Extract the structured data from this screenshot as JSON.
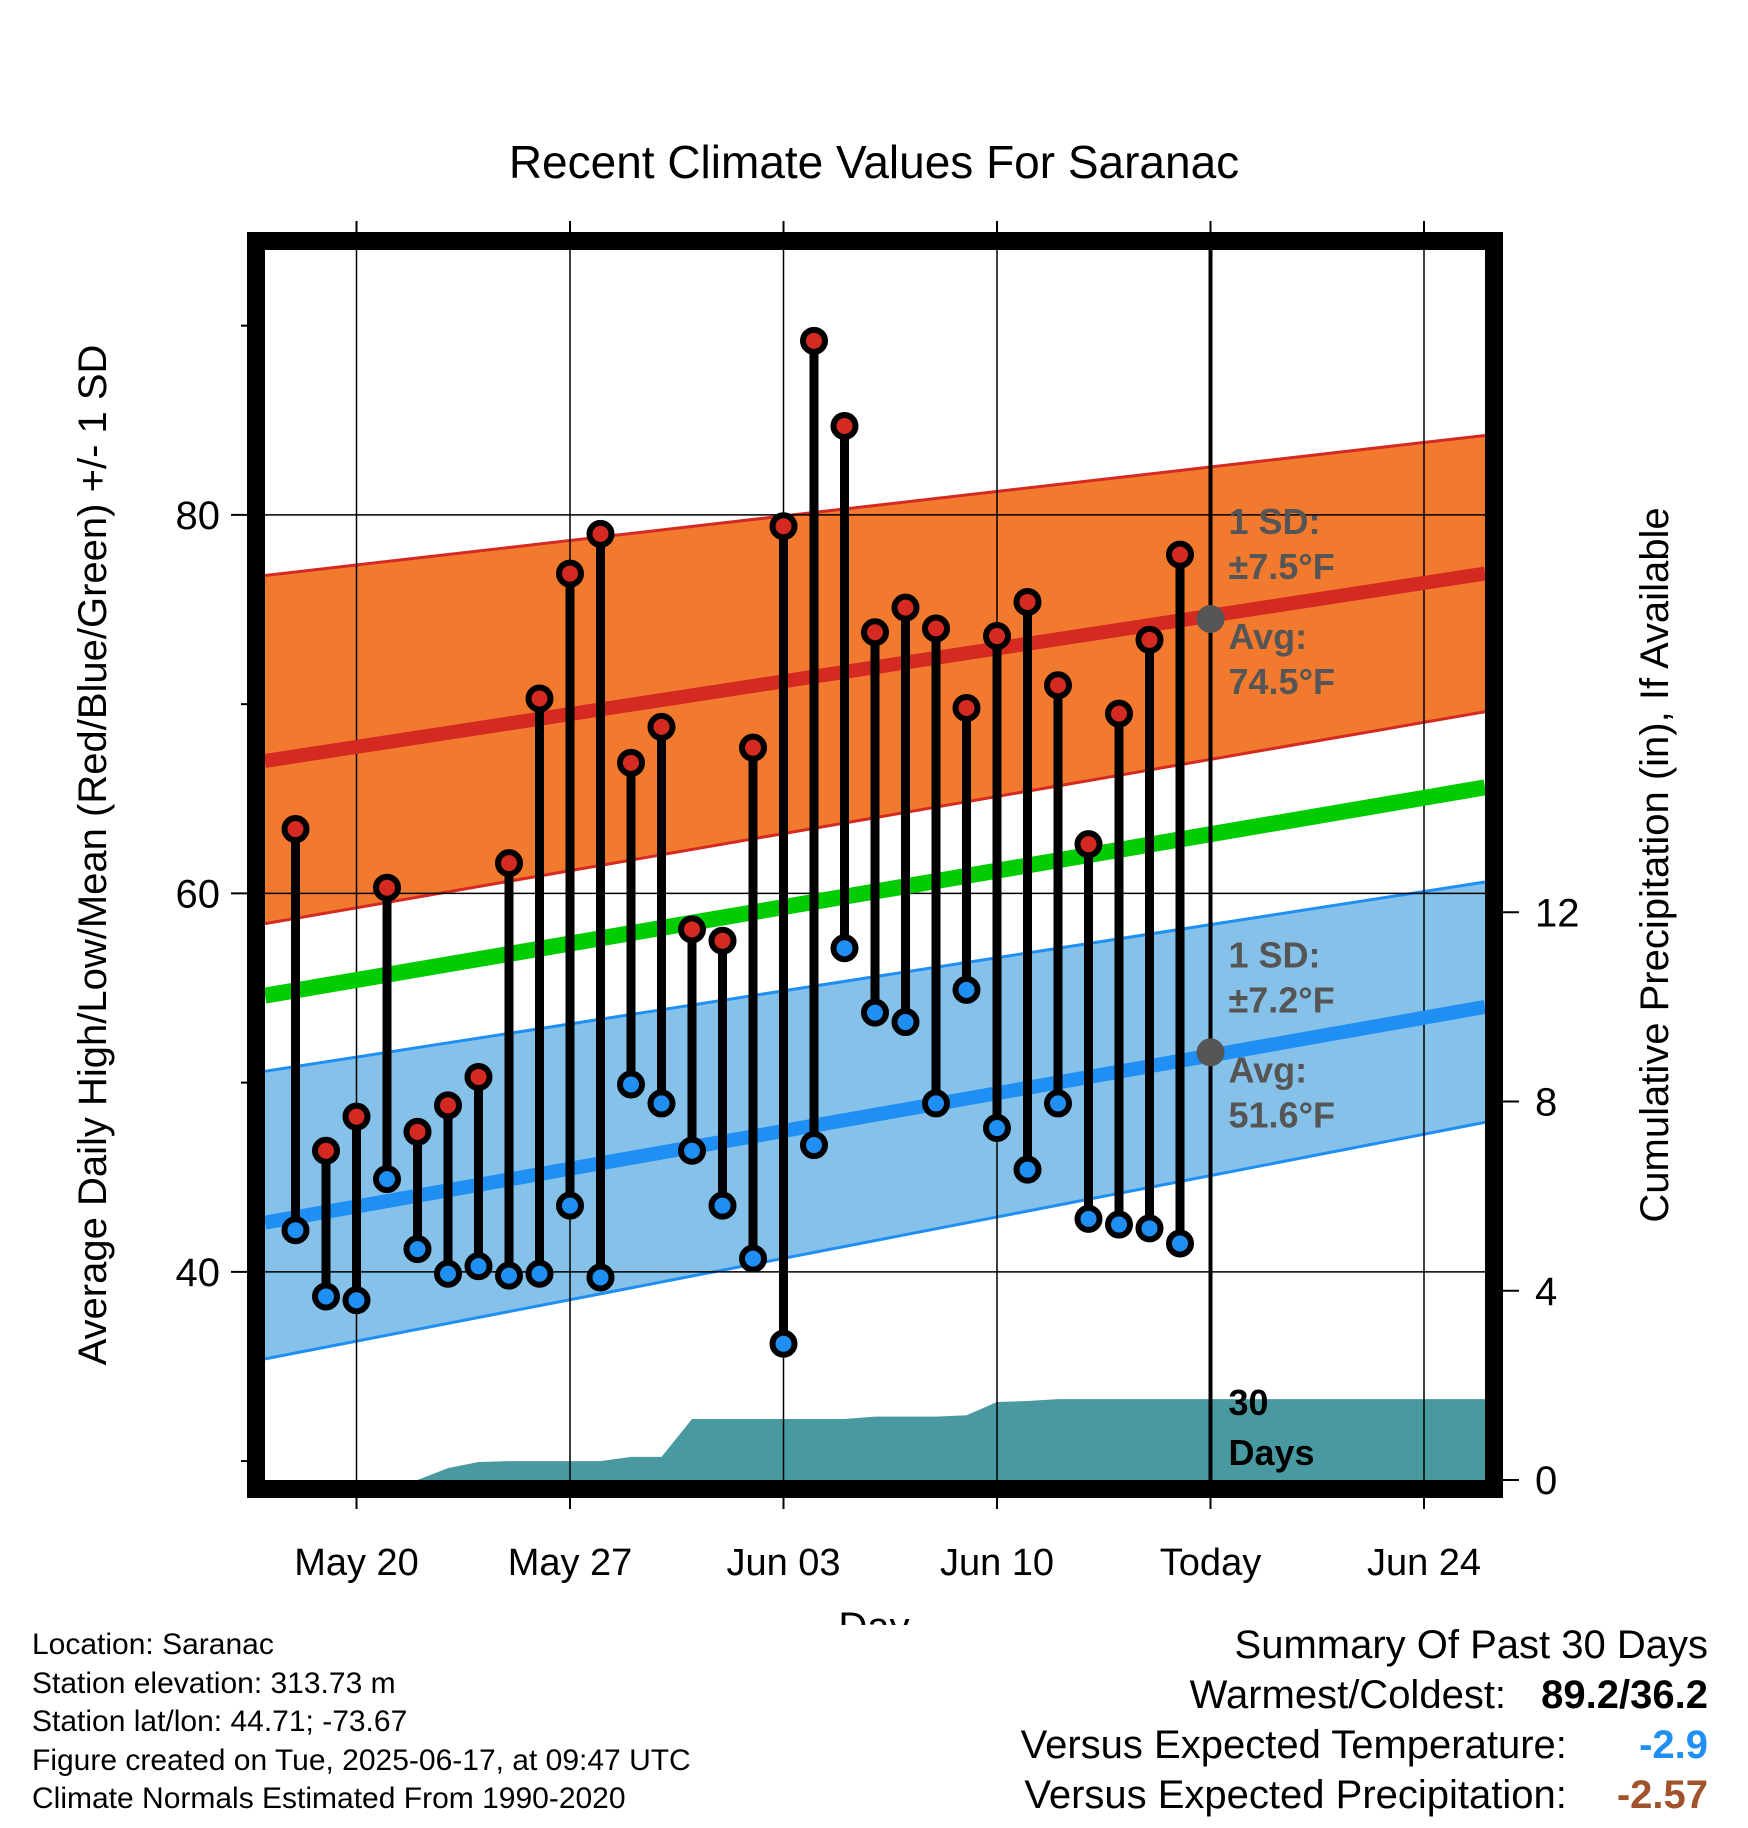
{
  "chart_data": {
    "type": "line",
    "title": "Recent Climate Values For Saranac",
    "xlabel": "Day",
    "ylabel_left": "Average Daily High/Low/Mean (Red/Blue/Green) +/- 1 SD",
    "ylabel_right": "Cumulative Precipitation (in), If Available",
    "x_tick_labels": [
      "May 20",
      "May 27",
      "Jun 03",
      "Jun 10",
      "Today",
      "Jun 24"
    ],
    "x_tick_days": [
      "2025-05-20",
      "2025-05-27",
      "2025-06-03",
      "2025-06-10",
      "2025-06-17",
      "2025-06-24"
    ],
    "xlim": [
      "2025-05-17",
      "2025-06-26"
    ],
    "today": "2025-06-17",
    "y_left_ticks": [
      40,
      60,
      80
    ],
    "ylim_left": [
      29,
      94
    ],
    "y_right_ticks": [
      0,
      4,
      8,
      12
    ],
    "ylim_right": [
      0,
      26
    ],
    "grid": true,
    "dates": [
      "2025-05-18",
      "2025-05-19",
      "2025-05-20",
      "2025-05-21",
      "2025-05-22",
      "2025-05-23",
      "2025-05-24",
      "2025-05-25",
      "2025-05-26",
      "2025-05-27",
      "2025-05-28",
      "2025-05-29",
      "2025-05-30",
      "2025-05-31",
      "2025-06-01",
      "2025-06-02",
      "2025-06-03",
      "2025-06-04",
      "2025-06-05",
      "2025-06-06",
      "2025-06-07",
      "2025-06-08",
      "2025-06-09",
      "2025-06-10",
      "2025-06-11",
      "2025-06-12",
      "2025-06-13",
      "2025-06-14",
      "2025-06-15",
      "2025-06-16"
    ],
    "high": [
      63.4,
      46.4,
      48.2,
      60.3,
      47.4,
      48.8,
      50.3,
      61.6,
      70.3,
      76.9,
      79.0,
      66.9,
      68.8,
      58.1,
      57.5,
      67.7,
      79.4,
      89.2,
      84.7,
      73.8,
      75.1,
      74.0,
      69.8,
      73.6,
      75.4,
      71.0,
      62.6,
      69.5,
      73.4,
      77.9
    ],
    "low": [
      42.2,
      38.7,
      38.5,
      44.9,
      41.2,
      39.9,
      40.3,
      39.8,
      39.9,
      43.5,
      39.7,
      49.9,
      48.9,
      46.4,
      43.5,
      40.7,
      36.2,
      46.7,
      57.1,
      53.7,
      53.2,
      48.9,
      54.9,
      47.6,
      45.4,
      48.9,
      42.8,
      42.5,
      42.3,
      41.5
    ],
    "normals": {
      "dates": [
        "2025-05-17",
        "2025-06-26"
      ],
      "high_mean": [
        67.0,
        76.9
      ],
      "high_upper": [
        76.8,
        84.2
      ],
      "high_lower": [
        58.4,
        69.6
      ],
      "low_mean": [
        42.6,
        54.0
      ],
      "low_upper": [
        50.6,
        60.6
      ],
      "low_lower": [
        35.4,
        47.9
      ],
      "daily_mean": [
        54.6,
        65.6
      ]
    },
    "precip_dates": [
      "2025-05-17",
      "2025-05-20",
      "2025-05-21",
      "2025-05-22",
      "2025-05-23",
      "2025-05-24",
      "2025-05-25",
      "2025-05-26",
      "2025-05-27",
      "2025-05-28",
      "2025-05-29",
      "2025-05-30",
      "2025-05-31",
      "2025-06-01",
      "2025-06-02",
      "2025-06-03",
      "2025-06-04",
      "2025-06-05",
      "2025-06-06",
      "2025-06-07",
      "2025-06-08",
      "2025-06-09",
      "2025-06-10",
      "2025-06-11",
      "2025-06-12",
      "2025-06-13",
      "2025-06-14",
      "2025-06-15",
      "2025-06-16",
      "2025-06-17",
      "2025-06-26"
    ],
    "precip_cum": [
      0,
      0,
      0,
      0,
      0.25,
      0.38,
      0.4,
      0.4,
      0.4,
      0.4,
      0.49,
      0.49,
      1.29,
      1.29,
      1.29,
      1.29,
      1.29,
      1.29,
      1.34,
      1.34,
      1.34,
      1.37,
      1.65,
      1.67,
      1.71,
      1.71,
      1.71,
      1.71,
      1.71,
      1.71,
      1.71
    ],
    "annotations": {
      "high_sd_label": "1 SD:",
      "high_sd_value": "±7.5°F",
      "high_avg_label": "Avg:",
      "high_avg_value": "74.5°F",
      "high_avg": 74.5,
      "low_sd_label": "1 SD:",
      "low_sd_value": "±7.2°F",
      "low_avg_label": "Avg:",
      "low_avg_value": "51.6°F",
      "low_avg": 51.6,
      "precip_label_1": "30",
      "precip_label_2": "Days"
    },
    "colors": {
      "high_band": "#f27a2f",
      "high_line": "#d42a22",
      "low_band": "#85c1e8",
      "low_line": "#1f8ff3",
      "mean_line": "#00cc00",
      "precip": "#4899a0",
      "high_dot": "#d42a22",
      "low_dot": "#1f8ff3",
      "annotation_text": "#555555",
      "avg_marker": "#555555"
    }
  },
  "footer": {
    "location": "Location: Saranac",
    "elevation": "Station elevation: 313.73 m",
    "latlon": "Station lat/lon: 44.71; -73.67",
    "created": "Figure created on Tue, 2025-06-17, at 09:47 UTC",
    "normals": "Climate Normals Estimated From 1990-2020"
  },
  "summary": {
    "title": "Summary Of Past 30 Days",
    "warmest_label": "Warmest/Coldest:",
    "warmest_value": "89.2/36.2",
    "temp_label": "Versus Expected Temperature:",
    "temp_value": "-2.9",
    "temp_color": "#1f8ff3",
    "precip_label": "Versus Expected Precipitation:",
    "precip_value": "-2.57",
    "precip_color": "#a0522d"
  }
}
